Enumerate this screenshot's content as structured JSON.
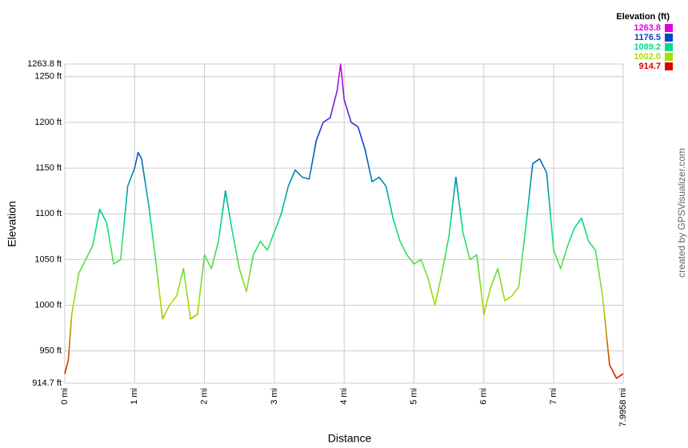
{
  "chart_data": {
    "type": "line",
    "x_label": "Distance",
    "y_label": "Elevation",
    "watermark": "created by GPSVisualizer.com",
    "x": [
      0,
      0.05,
      0.1,
      0.2,
      0.3,
      0.4,
      0.5,
      0.6,
      0.7,
      0.8,
      0.9,
      1.0,
      1.05,
      1.1,
      1.2,
      1.3,
      1.4,
      1.5,
      1.6,
      1.7,
      1.8,
      1.9,
      2.0,
      2.1,
      2.2,
      2.3,
      2.4,
      2.5,
      2.6,
      2.7,
      2.8,
      2.9,
      3.0,
      3.1,
      3.2,
      3.3,
      3.4,
      3.5,
      3.6,
      3.7,
      3.8,
      3.9,
      3.95,
      4.0,
      4.1,
      4.2,
      4.3,
      4.4,
      4.5,
      4.6,
      4.7,
      4.8,
      4.9,
      5.0,
      5.1,
      5.2,
      5.3,
      5.4,
      5.5,
      5.6,
      5.7,
      5.8,
      5.9,
      6.0,
      6.1,
      6.2,
      6.3,
      6.4,
      6.5,
      6.6,
      6.7,
      6.8,
      6.9,
      7.0,
      7.1,
      7.2,
      7.3,
      7.4,
      7.5,
      7.6,
      7.7,
      7.8,
      7.9,
      7.9958
    ],
    "values": [
      925,
      940,
      990,
      1035,
      1050,
      1065,
      1105,
      1090,
      1045,
      1050,
      1130,
      1150,
      1167,
      1160,
      1110,
      1050,
      985,
      1000,
      1010,
      1040,
      985,
      990,
      1055,
      1040,
      1070,
      1125,
      1080,
      1040,
      1015,
      1055,
      1070,
      1060,
      1080,
      1100,
      1130,
      1148,
      1140,
      1138,
      1180,
      1200,
      1205,
      1235,
      1263.8,
      1225,
      1200,
      1195,
      1170,
      1135,
      1140,
      1130,
      1095,
      1070,
      1055,
      1045,
      1050,
      1030,
      1000,
      1035,
      1075,
      1140,
      1080,
      1050,
      1055,
      990,
      1020,
      1040,
      1005,
      1010,
      1020,
      1085,
      1155,
      1160,
      1145,
      1060,
      1040,
      1065,
      1085,
      1095,
      1070,
      1060,
      1010,
      935,
      920,
      925
    ],
    "xlim": [
      0,
      7.9958
    ],
    "ylim": [
      914.7,
      1263.8
    ],
    "xticks": [
      {
        "value": 0,
        "label": "0 mi"
      },
      {
        "value": 1,
        "label": "1 mi"
      },
      {
        "value": 2,
        "label": "2 mi"
      },
      {
        "value": 3,
        "label": "3 mi"
      },
      {
        "value": 4,
        "label": "4 mi"
      },
      {
        "value": 5,
        "label": "5 mi"
      },
      {
        "value": 6,
        "label": "6 mi"
      },
      {
        "value": 7,
        "label": "7 mi"
      },
      {
        "value": 7.9958,
        "label": "7.9958 mi"
      }
    ],
    "yticks": [
      {
        "value": 914.7,
        "label": "914.7 ft"
      },
      {
        "value": 950,
        "label": "950 ft"
      },
      {
        "value": 1000,
        "label": "1000 ft"
      },
      {
        "value": 1050,
        "label": "1050 ft"
      },
      {
        "value": 1100,
        "label": "1100 ft"
      },
      {
        "value": 1150,
        "label": "1150 ft"
      },
      {
        "value": 1200,
        "label": "1200 ft"
      },
      {
        "value": 1250,
        "label": "1250 ft"
      },
      {
        "value": 1263.8,
        "label": "1263.8 ft"
      }
    ],
    "grid": true,
    "legend": {
      "title": "Elevation (ft)",
      "position": "top-right",
      "stops": [
        {
          "value": 1263.8,
          "label": "1263.8",
          "color": "#dd00dd"
        },
        {
          "value": 1176.5,
          "label": "1176.5",
          "color": "#0044cc"
        },
        {
          "value": 1089.2,
          "label": "1089.2",
          "color": "#00dd88"
        },
        {
          "value": 1002,
          "label": "1002.0",
          "color": "#aadd00"
        },
        {
          "value": 914.7,
          "label": "914.7",
          "color": "#dd0000"
        }
      ]
    }
  }
}
